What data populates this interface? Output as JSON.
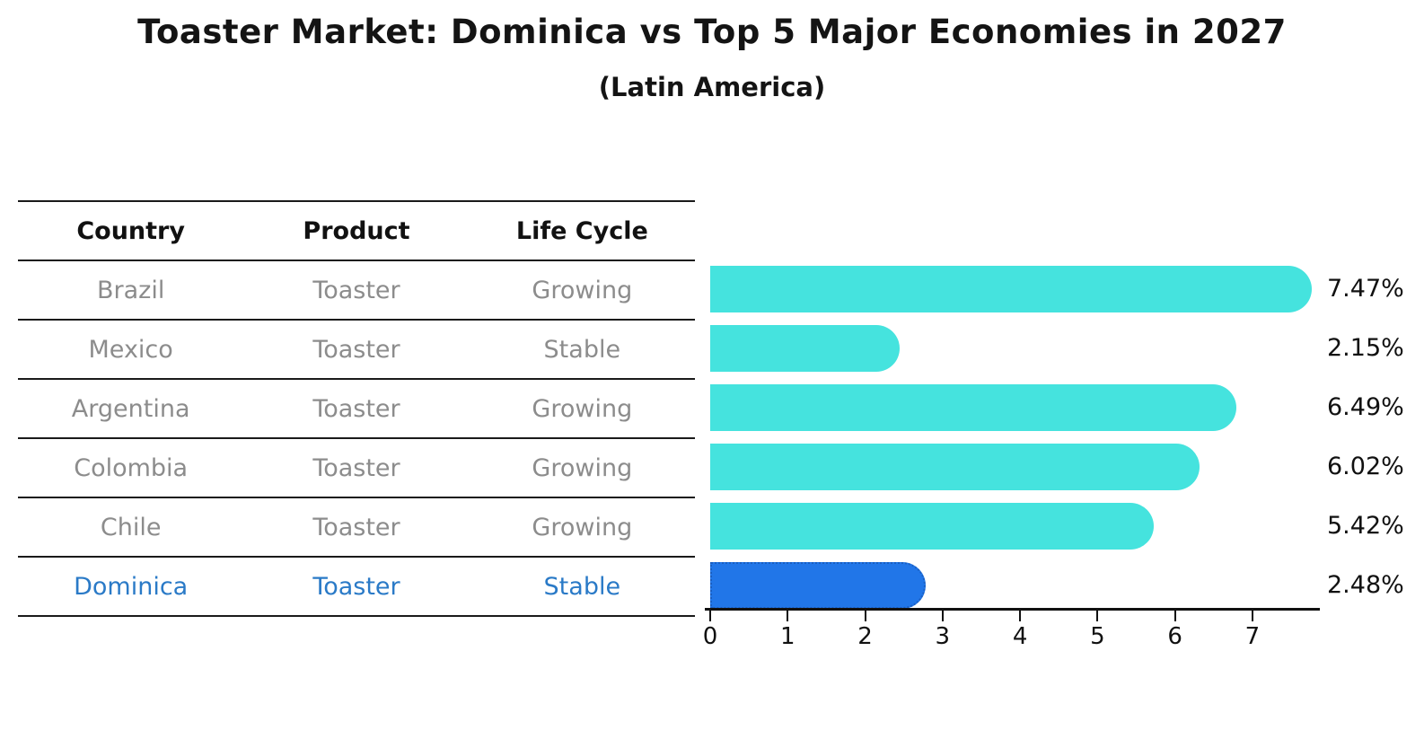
{
  "title": "Toaster Market: Dominica vs Top 5 Major Economies in 2027",
  "subtitle": "(Latin America)",
  "table": {
    "headers": [
      "Country",
      "Product",
      "Life Cycle"
    ],
    "rows": [
      {
        "country": "Brazil",
        "product": "Toaster",
        "life_cycle": "Growing",
        "highlight": false
      },
      {
        "country": "Mexico",
        "product": "Toaster",
        "life_cycle": "Stable",
        "highlight": false
      },
      {
        "country": "Argentina",
        "product": "Toaster",
        "life_cycle": "Growing",
        "highlight": false
      },
      {
        "country": "Colombia",
        "product": "Toaster",
        "life_cycle": "Growing",
        "highlight": false
      },
      {
        "country": "Chile",
        "product": "Toaster",
        "life_cycle": "Growing",
        "highlight": false
      },
      {
        "country": "Dominica",
        "product": "Toaster",
        "life_cycle": "Stable",
        "highlight": true
      }
    ]
  },
  "chart_data": {
    "type": "bar",
    "orientation": "horizontal",
    "title": "Toaster Market: Dominica vs Top 5 Major Economies in 2027",
    "subtitle": "(Latin America)",
    "categories": [
      "Brazil",
      "Mexico",
      "Argentina",
      "Colombia",
      "Chile",
      "Dominica"
    ],
    "values": [
      7.47,
      2.15,
      6.49,
      6.02,
      5.42,
      2.48
    ],
    "value_labels": [
      "7.47%",
      "2.15%",
      "6.49%",
      "6.02%",
      "5.42%",
      "2.48%"
    ],
    "unit": "%",
    "xlim": [
      0,
      7.87
    ],
    "x_ticks": [
      "0",
      "1",
      "2",
      "3",
      "4",
      "5",
      "6",
      "7"
    ],
    "grid": false,
    "legend": "none",
    "highlight_index": 5
  },
  "colors": {
    "bar": "#45e3de",
    "highlight_bar": "#2176e8",
    "highlight_border": "#1a5fc2",
    "highlight_text": "#2a7ac7",
    "muted_text": "#8c8c8c",
    "text": "#111111"
  }
}
